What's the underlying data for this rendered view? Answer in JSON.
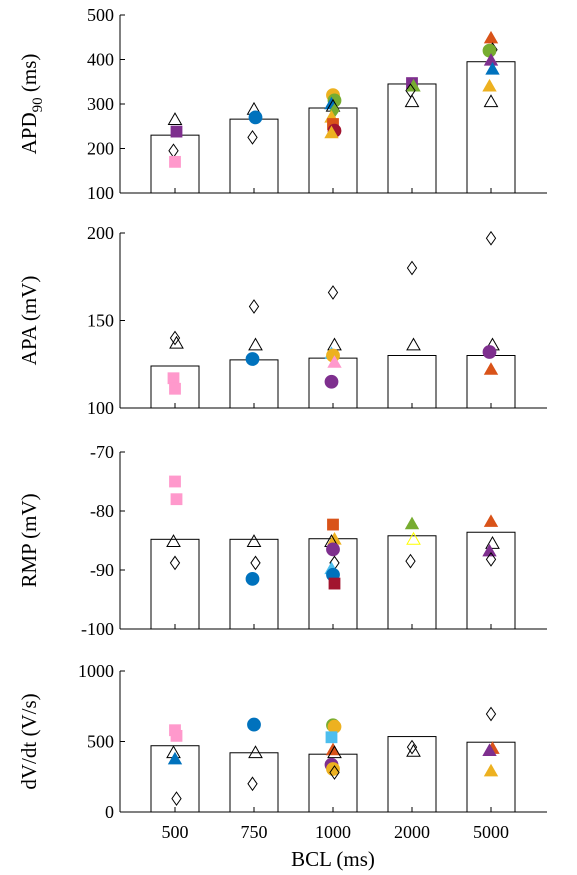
{
  "chart_data": [
    {
      "type": "bar",
      "ylabel": "APD90 (ms)",
      "ylabel_main": "APD",
      "ylabel_sub": "90",
      "ylabel_unit": " (ms)",
      "categories": [
        "500",
        "750",
        "1000",
        "2000",
        "5000"
      ],
      "values": [
        230,
        266,
        291,
        345,
        395
      ],
      "ylim": [
        100,
        500
      ],
      "yticks": [
        "100",
        "200",
        "300",
        "400",
        "500"
      ],
      "points": [
        {
          "cat": 0,
          "y": 265,
          "shape": "triangle-open",
          "color": "#000000"
        },
        {
          "cat": 0,
          "y": 238,
          "shape": "square",
          "color": "#7e2f8e"
        },
        {
          "cat": 0,
          "y": 195,
          "shape": "diamond-open",
          "color": "#000000"
        },
        {
          "cat": 0,
          "y": 170,
          "shape": "square",
          "color": "#ff99cc"
        },
        {
          "cat": 1,
          "y": 288,
          "shape": "triangle-open",
          "color": "#000000"
        },
        {
          "cat": 1,
          "y": 270,
          "shape": "circle",
          "color": "#0072bd"
        },
        {
          "cat": 1,
          "y": 225,
          "shape": "diamond-open",
          "color": "#000000"
        },
        {
          "cat": 2,
          "y": 320,
          "shape": "circle",
          "color": "#edb120"
        },
        {
          "cat": 2,
          "y": 308,
          "shape": "circle",
          "color": "#77ac30"
        },
        {
          "cat": 2,
          "y": 300,
          "shape": "triangle",
          "color": "#0072bd"
        },
        {
          "cat": 2,
          "y": 295,
          "shape": "triangle-open",
          "color": "#000000"
        },
        {
          "cat": 2,
          "y": 285,
          "shape": "diamond",
          "color": "#77ac30"
        },
        {
          "cat": 2,
          "y": 270,
          "shape": "triangle",
          "color": "#edb120"
        },
        {
          "cat": 2,
          "y": 255,
          "shape": "square",
          "color": "#d95319"
        },
        {
          "cat": 2,
          "y": 240,
          "shape": "circle",
          "color": "#a2142f"
        },
        {
          "cat": 2,
          "y": 235,
          "shape": "triangle",
          "color": "#edb120"
        },
        {
          "cat": 3,
          "y": 347,
          "shape": "square",
          "color": "#7e2f8e"
        },
        {
          "cat": 3,
          "y": 340,
          "shape": "triangle",
          "color": "#77ac30"
        },
        {
          "cat": 3,
          "y": 330,
          "shape": "diamond-open",
          "color": "#000000"
        },
        {
          "cat": 3,
          "y": 305,
          "shape": "triangle-open",
          "color": "#000000"
        },
        {
          "cat": 4,
          "y": 448,
          "shape": "triangle",
          "color": "#d95319"
        },
        {
          "cat": 4,
          "y": 422,
          "shape": "diamond-open",
          "color": "#000000"
        },
        {
          "cat": 4,
          "y": 420,
          "shape": "circle",
          "color": "#77ac30"
        },
        {
          "cat": 4,
          "y": 398,
          "shape": "triangle",
          "color": "#7e2f8e"
        },
        {
          "cat": 4,
          "y": 378,
          "shape": "triangle",
          "color": "#0072bd"
        },
        {
          "cat": 4,
          "y": 340,
          "shape": "triangle",
          "color": "#edb120"
        },
        {
          "cat": 4,
          "y": 305,
          "shape": "triangle-open",
          "color": "#000000"
        }
      ]
    },
    {
      "type": "bar",
      "ylabel": "APA (mV)",
      "categories": [
        "500",
        "750",
        "1000",
        "2000",
        "5000"
      ],
      "values": [
        124,
        127.5,
        128.5,
        130,
        130
      ],
      "ylim": [
        100,
        200
      ],
      "yticks": [
        "100",
        "150",
        "200"
      ],
      "points": [
        {
          "cat": 0,
          "y": 140,
          "shape": "diamond-open",
          "color": "#000000"
        },
        {
          "cat": 0,
          "y": 137,
          "shape": "triangle-open",
          "color": "#000000"
        },
        {
          "cat": 0,
          "y": 117,
          "shape": "square",
          "color": "#ff99cc"
        },
        {
          "cat": 0,
          "y": 111,
          "shape": "square",
          "color": "#ff99cc"
        },
        {
          "cat": 1,
          "y": 158,
          "shape": "diamond-open",
          "color": "#000000"
        },
        {
          "cat": 1,
          "y": 136,
          "shape": "triangle-open",
          "color": "#000000"
        },
        {
          "cat": 1,
          "y": 128,
          "shape": "circle",
          "color": "#0072bd"
        },
        {
          "cat": 2,
          "y": 166,
          "shape": "diamond-open",
          "color": "#000000"
        },
        {
          "cat": 2,
          "y": 136,
          "shape": "triangle-open",
          "color": "#000000"
        },
        {
          "cat": 2,
          "y": 131,
          "shape": "triangle",
          "color": "#4dbeee"
        },
        {
          "cat": 2,
          "y": 130,
          "shape": "circle",
          "color": "#edb120"
        },
        {
          "cat": 2,
          "y": 126,
          "shape": "triangle",
          "color": "#ff99cc"
        },
        {
          "cat": 2,
          "y": 115,
          "shape": "circle",
          "color": "#7e2f8e"
        },
        {
          "cat": 3,
          "y": 180,
          "shape": "diamond-open",
          "color": "#000000"
        },
        {
          "cat": 3,
          "y": 136,
          "shape": "triangle-open",
          "color": "#000000"
        },
        {
          "cat": 4,
          "y": 197,
          "shape": "diamond-open",
          "color": "#000000"
        },
        {
          "cat": 4,
          "y": 136,
          "shape": "triangle-open",
          "color": "#000000"
        },
        {
          "cat": 4,
          "y": 132,
          "shape": "circle",
          "color": "#7e2f8e"
        },
        {
          "cat": 4,
          "y": 122,
          "shape": "triangle",
          "color": "#d95319"
        }
      ]
    },
    {
      "type": "bar",
      "ylabel": "RMP (mV)",
      "categories": [
        "500",
        "750",
        "1000",
        "2000",
        "5000"
      ],
      "values": [
        -84.8,
        -84.8,
        -84.7,
        -84.2,
        -83.6
      ],
      "ylim": [
        -100,
        -70
      ],
      "baseline": -100,
      "yticks": [
        "-100",
        "-90",
        "-80",
        "-70"
      ],
      "points": [
        {
          "cat": 0,
          "y": -75,
          "shape": "square",
          "color": "#ff99cc"
        },
        {
          "cat": 0,
          "y": -78,
          "shape": "square",
          "color": "#ff99cc"
        },
        {
          "cat": 0,
          "y": -85.2,
          "shape": "triangle-open",
          "color": "#000000"
        },
        {
          "cat": 0,
          "y": -88.8,
          "shape": "diamond-open",
          "color": "#000000"
        },
        {
          "cat": 1,
          "y": -85.2,
          "shape": "triangle-open",
          "color": "#000000"
        },
        {
          "cat": 1,
          "y": -88.8,
          "shape": "diamond-open",
          "color": "#000000"
        },
        {
          "cat": 1,
          "y": -91.5,
          "shape": "circle",
          "color": "#0072bd"
        },
        {
          "cat": 2,
          "y": -82.3,
          "shape": "square",
          "color": "#d95319"
        },
        {
          "cat": 2,
          "y": -84.8,
          "shape": "triangle",
          "color": "#edb120"
        },
        {
          "cat": 2,
          "y": -85.2,
          "shape": "triangle-open",
          "color": "#000000"
        },
        {
          "cat": 2,
          "y": -86.5,
          "shape": "circle",
          "color": "#7e2f8e"
        },
        {
          "cat": 2,
          "y": -88.8,
          "shape": "diamond-open",
          "color": "#000000"
        },
        {
          "cat": 2,
          "y": -89.8,
          "shape": "triangle",
          "color": "#4dbeee"
        },
        {
          "cat": 2,
          "y": -90.8,
          "shape": "circle",
          "color": "#0072bd"
        },
        {
          "cat": 2,
          "y": -92.3,
          "shape": "square",
          "color": "#a2142f"
        },
        {
          "cat": 3,
          "y": -82.2,
          "shape": "triangle",
          "color": "#77ac30"
        },
        {
          "cat": 3,
          "y": -84.8,
          "shape": "triangle-open",
          "color": "#ffff00"
        },
        {
          "cat": 3,
          "y": -88.5,
          "shape": "diamond-open",
          "color": "#000000"
        },
        {
          "cat": 4,
          "y": -81.8,
          "shape": "triangle",
          "color": "#d95319"
        },
        {
          "cat": 4,
          "y": -85.5,
          "shape": "triangle-open",
          "color": "#000000"
        },
        {
          "cat": 4,
          "y": -86.8,
          "shape": "triangle",
          "color": "#7e2f8e"
        },
        {
          "cat": 4,
          "y": -88.2,
          "shape": "diamond-open",
          "color": "#000000"
        }
      ]
    },
    {
      "type": "bar",
      "ylabel": "dV/dt (V/s)",
      "xlabel": "BCL (ms)",
      "categories": [
        "500",
        "750",
        "1000",
        "2000",
        "5000"
      ],
      "values": [
        470,
        420,
        410,
        535,
        495
      ],
      "ylim": [
        0,
        1000
      ],
      "yticks": [
        "0",
        "500",
        "1000"
      ],
      "points": [
        {
          "cat": 0,
          "y": 580,
          "shape": "square",
          "color": "#ff99cc"
        },
        {
          "cat": 0,
          "y": 540,
          "shape": "square",
          "color": "#ff99cc"
        },
        {
          "cat": 0,
          "y": 420,
          "shape": "triangle-open",
          "color": "#000000"
        },
        {
          "cat": 0,
          "y": 375,
          "shape": "triangle",
          "color": "#0072bd"
        },
        {
          "cat": 0,
          "y": 95,
          "shape": "diamond-open",
          "color": "#000000"
        },
        {
          "cat": 1,
          "y": 620,
          "shape": "circle",
          "color": "#0072bd"
        },
        {
          "cat": 1,
          "y": 420,
          "shape": "triangle-open",
          "color": "#000000"
        },
        {
          "cat": 1,
          "y": 200,
          "shape": "diamond-open",
          "color": "#000000"
        },
        {
          "cat": 2,
          "y": 615,
          "shape": "circle",
          "color": "#77ac30"
        },
        {
          "cat": 2,
          "y": 605,
          "shape": "circle",
          "color": "#edb120"
        },
        {
          "cat": 2,
          "y": 530,
          "shape": "square",
          "color": "#4dbeee"
        },
        {
          "cat": 2,
          "y": 440,
          "shape": "triangle",
          "color": "#d95319"
        },
        {
          "cat": 2,
          "y": 420,
          "shape": "triangle-open",
          "color": "#000000"
        },
        {
          "cat": 2,
          "y": 335,
          "shape": "circle",
          "color": "#7e2f8e"
        },
        {
          "cat": 2,
          "y": 305,
          "shape": "circle",
          "color": "#edb120"
        },
        {
          "cat": 2,
          "y": 280,
          "shape": "diamond-open",
          "color": "#000000"
        },
        {
          "cat": 3,
          "y": 460,
          "shape": "diamond-open",
          "color": "#000000"
        },
        {
          "cat": 3,
          "y": 430,
          "shape": "triangle-open",
          "color": "#000000"
        },
        {
          "cat": 4,
          "y": 695,
          "shape": "diamond-open",
          "color": "#000000"
        },
        {
          "cat": 4,
          "y": 450,
          "shape": "triangle",
          "color": "#d95319"
        },
        {
          "cat": 4,
          "y": 435,
          "shape": "triangle",
          "color": "#7e2f8e"
        },
        {
          "cat": 4,
          "y": 290,
          "shape": "triangle",
          "color": "#edb120"
        }
      ]
    }
  ]
}
